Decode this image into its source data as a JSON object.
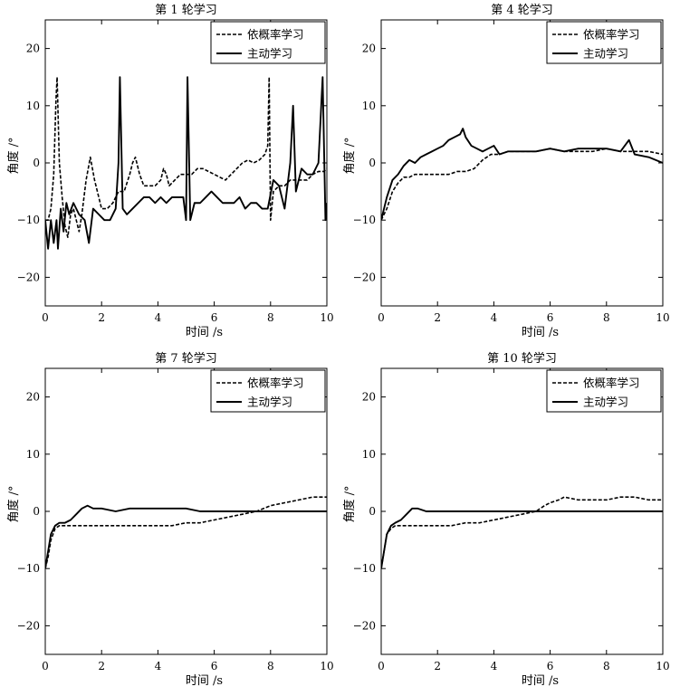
{
  "legend": {
    "probabilistic_label": "依概率学习",
    "active_label": "主动学习"
  },
  "axes_text": {
    "xlabel": "时间 /s",
    "ylabel": "角度 /°"
  },
  "chart_data": [
    {
      "type": "line",
      "title": "第 1 轮学习",
      "xlabel": "时间 /s",
      "ylabel": "角度 /°",
      "xlim": [
        0,
        10
      ],
      "ylim": [
        -25,
        25
      ],
      "xticks": [
        0,
        2,
        4,
        6,
        8,
        10
      ],
      "yticks": [
        -20,
        -10,
        0,
        10,
        20
      ],
      "grid": false,
      "legend_position": "top-right",
      "series": [
        {
          "name": "依概率学习",
          "style": "dashed",
          "x": [
            0,
            0.1,
            0.2,
            0.3,
            0.38,
            0.42,
            0.5,
            0.6,
            0.7,
            0.8,
            0.9,
            1.0,
            1.1,
            1.2,
            1.3,
            1.45,
            1.6,
            1.75,
            1.9,
            2.0,
            2.2,
            2.4,
            2.6,
            2.8,
            3.0,
            3.1,
            3.2,
            3.35,
            3.5,
            3.7,
            3.9,
            4.1,
            4.2,
            4.3,
            4.4,
            4.6,
            4.8,
            5.0,
            5.2,
            5.4,
            5.6,
            5.8,
            6.0,
            6.2,
            6.4,
            6.6,
            6.8,
            7.0,
            7.2,
            7.4,
            7.6,
            7.8,
            7.9,
            7.95,
            8.0,
            8.1,
            8.3,
            8.5,
            8.7,
            8.9,
            9.1,
            9.3,
            9.5,
            9.7,
            9.9,
            10.0
          ],
          "y": [
            -10,
            -10,
            -8,
            -2,
            11,
            15,
            0,
            -6,
            -11,
            -13,
            -9,
            -8,
            -10,
            -12,
            -9,
            -3,
            1,
            -3,
            -6,
            -8,
            -8,
            -7,
            -5,
            -5,
            -2,
            0,
            1,
            -2,
            -4,
            -4,
            -4,
            -3,
            -1,
            -2,
            -4,
            -3,
            -2,
            -2,
            -2,
            -1,
            -1,
            -1.5,
            -2,
            -2.5,
            -3,
            -2,
            -1,
            0,
            0.5,
            0,
            0.5,
            1.5,
            3,
            15,
            -10,
            -5,
            -4,
            -4,
            -3,
            -3,
            -3,
            -3,
            -2,
            -1.5,
            -1.5,
            -1
          ]
        },
        {
          "name": "主动学习",
          "style": "solid",
          "x": [
            0,
            0.1,
            0.2,
            0.3,
            0.4,
            0.45,
            0.55,
            0.65,
            0.75,
            0.85,
            1.0,
            1.2,
            1.4,
            1.55,
            1.7,
            1.9,
            2.1,
            2.3,
            2.5,
            2.6,
            2.65,
            2.75,
            2.9,
            3.1,
            3.3,
            3.5,
            3.7,
            3.9,
            4.1,
            4.3,
            4.5,
            4.7,
            4.9,
            5.0,
            5.05,
            5.15,
            5.3,
            5.5,
            5.7,
            5.9,
            6.1,
            6.3,
            6.5,
            6.7,
            6.9,
            7.1,
            7.3,
            7.5,
            7.7,
            7.9,
            8.1,
            8.3,
            8.5,
            8.7,
            8.8,
            8.9,
            9.1,
            9.3,
            9.5,
            9.7,
            9.85,
            9.95,
            10.0
          ],
          "y": [
            -10,
            -15,
            -10,
            -14,
            -10,
            -15,
            -8,
            -12,
            -7,
            -9,
            -7,
            -9,
            -10,
            -14,
            -8,
            -9,
            -10,
            -10,
            -8,
            0,
            15,
            -8,
            -9,
            -8,
            -7,
            -6,
            -6,
            -7,
            -6,
            -7,
            -6,
            -6,
            -6,
            -10,
            15,
            -10,
            -7,
            -7,
            -6,
            -5,
            -6,
            -7,
            -7,
            -7,
            -6,
            -8,
            -7,
            -7,
            -8,
            -8,
            -3,
            -4,
            -8,
            0,
            10,
            -5,
            -1,
            -2,
            -2,
            0,
            15,
            -10,
            -7
          ]
        }
      ]
    },
    {
      "type": "line",
      "title": "第 4 轮学习",
      "xlabel": "时间 /s",
      "ylabel": "角度 /°",
      "xlim": [
        0,
        10
      ],
      "ylim": [
        -25,
        25
      ],
      "xticks": [
        0,
        2,
        4,
        6,
        8,
        10
      ],
      "yticks": [
        -20,
        -10,
        0,
        10,
        20
      ],
      "grid": false,
      "legend_position": "top-right",
      "series": [
        {
          "name": "依概率学习",
          "style": "dashed",
          "x": [
            0,
            0.2,
            0.4,
            0.6,
            0.8,
            1.0,
            1.2,
            1.5,
            1.8,
            2.1,
            2.4,
            2.7,
            3.0,
            3.3,
            3.6,
            3.9,
            4.2,
            4.5,
            5.0,
            5.5,
            6.0,
            6.5,
            7.0,
            7.5,
            8.0,
            8.5,
            9.0,
            9.5,
            10.0
          ],
          "y": [
            -10,
            -8,
            -5,
            -3.5,
            -2.5,
            -2.5,
            -2,
            -2,
            -2,
            -2,
            -2,
            -1.5,
            -1.5,
            -1,
            0.5,
            1.5,
            1.5,
            2,
            2,
            2,
            2.5,
            2,
            2,
            2,
            2.5,
            2,
            2,
            2,
            1.5
          ]
        },
        {
          "name": "主动学习",
          "style": "solid",
          "x": [
            0,
            0.2,
            0.4,
            0.6,
            0.8,
            1.0,
            1.2,
            1.4,
            1.6,
            1.8,
            2.0,
            2.2,
            2.4,
            2.6,
            2.8,
            2.9,
            3.0,
            3.2,
            3.4,
            3.6,
            3.8,
            4.0,
            4.2,
            4.5,
            5.0,
            5.5,
            6.0,
            6.5,
            7.0,
            7.5,
            8.0,
            8.5,
            8.8,
            9.0,
            9.5,
            10.0
          ],
          "y": [
            -10,
            -6,
            -3,
            -2,
            -0.5,
            0.5,
            0,
            1,
            1.5,
            2,
            2.5,
            3,
            4,
            4.5,
            5,
            6,
            4.5,
            3,
            2.5,
            2,
            2.5,
            3,
            1.5,
            2,
            2,
            2,
            2.5,
            2,
            2.5,
            2.5,
            2.5,
            2,
            4,
            1.5,
            1,
            0
          ]
        }
      ]
    },
    {
      "type": "line",
      "title": "第 7 轮学习",
      "xlabel": "时间 /s",
      "ylabel": "角度 /°",
      "xlim": [
        0,
        10
      ],
      "ylim": [
        -25,
        25
      ],
      "xticks": [
        0,
        2,
        4,
        6,
        8,
        10
      ],
      "yticks": [
        -20,
        -10,
        0,
        10,
        20
      ],
      "grid": false,
      "legend_position": "top-right",
      "series": [
        {
          "name": "依概率学习",
          "style": "dashed",
          "x": [
            0,
            0.1,
            0.2,
            0.35,
            0.5,
            0.7,
            1.0,
            1.5,
            2.0,
            2.5,
            3.0,
            3.5,
            4.0,
            4.5,
            5.0,
            5.5,
            6.0,
            6.5,
            7.0,
            7.5,
            8.0,
            8.5,
            9.0,
            9.5,
            10.0
          ],
          "y": [
            -10,
            -8,
            -5,
            -3,
            -2.5,
            -2.5,
            -2.5,
            -2.5,
            -2.5,
            -2.5,
            -2.5,
            -2.5,
            -2.5,
            -2.5,
            -2,
            -2,
            -1.5,
            -1,
            -0.5,
            0,
            1,
            1.5,
            2,
            2.5,
            2.5
          ]
        },
        {
          "name": "主动学习",
          "style": "solid",
          "x": [
            0,
            0.1,
            0.2,
            0.35,
            0.5,
            0.7,
            0.9,
            1.1,
            1.3,
            1.5,
            1.7,
            2.0,
            2.5,
            3.0,
            3.5,
            4.0,
            4.5,
            5.0,
            5.5,
            6.0,
            6.5,
            7.0,
            7.5,
            8.0,
            8.5,
            9.0,
            9.5,
            10.0
          ],
          "y": [
            -10,
            -7,
            -4,
            -2.5,
            -2,
            -2,
            -1.5,
            -0.5,
            0.5,
            1,
            0.5,
            0.5,
            0,
            0.5,
            0.5,
            0.5,
            0.5,
            0.5,
            0,
            0,
            0,
            0,
            0,
            0,
            0,
            0,
            0,
            0
          ]
        }
      ]
    },
    {
      "type": "line",
      "title": "第 10 轮学习",
      "xlabel": "时间 /s",
      "ylabel": "角度 /°",
      "xlim": [
        0,
        10
      ],
      "ylim": [
        -25,
        25
      ],
      "xticks": [
        0,
        2,
        4,
        6,
        8,
        10
      ],
      "yticks": [
        -20,
        -10,
        0,
        10,
        20
      ],
      "grid": false,
      "legend_position": "top-right",
      "series": [
        {
          "name": "依概率学习",
          "style": "dashed",
          "x": [
            0,
            0.1,
            0.2,
            0.35,
            0.5,
            0.7,
            1.0,
            1.5,
            2.0,
            2.5,
            3.0,
            3.5,
            4.0,
            4.5,
            5.0,
            5.5,
            5.8,
            6.0,
            6.3,
            6.5,
            7.0,
            7.5,
            8.0,
            8.5,
            9.0,
            9.5,
            10.0
          ],
          "y": [
            -10,
            -7,
            -4,
            -3,
            -2.5,
            -2.5,
            -2.5,
            -2.5,
            -2.5,
            -2.5,
            -2,
            -2,
            -1.5,
            -1,
            -0.5,
            0,
            1,
            1.5,
            2,
            2.5,
            2,
            2,
            2,
            2.5,
            2.5,
            2,
            2
          ]
        },
        {
          "name": "主动学习",
          "style": "solid",
          "x": [
            0,
            0.1,
            0.2,
            0.35,
            0.5,
            0.7,
            0.9,
            1.1,
            1.3,
            1.6,
            2.0,
            2.5,
            3.0,
            3.5,
            4.0,
            4.5,
            5.0,
            5.5,
            6.0,
            6.5,
            7.0,
            7.5,
            8.0,
            8.5,
            9.0,
            9.5,
            10.0
          ],
          "y": [
            -10,
            -7,
            -4,
            -2.5,
            -2,
            -1.5,
            -0.5,
            0.5,
            0.5,
            0,
            0,
            0,
            0,
            0,
            0,
            0,
            0,
            0,
            0,
            0,
            0,
            0,
            0,
            0,
            0,
            0,
            0
          ]
        }
      ]
    }
  ]
}
